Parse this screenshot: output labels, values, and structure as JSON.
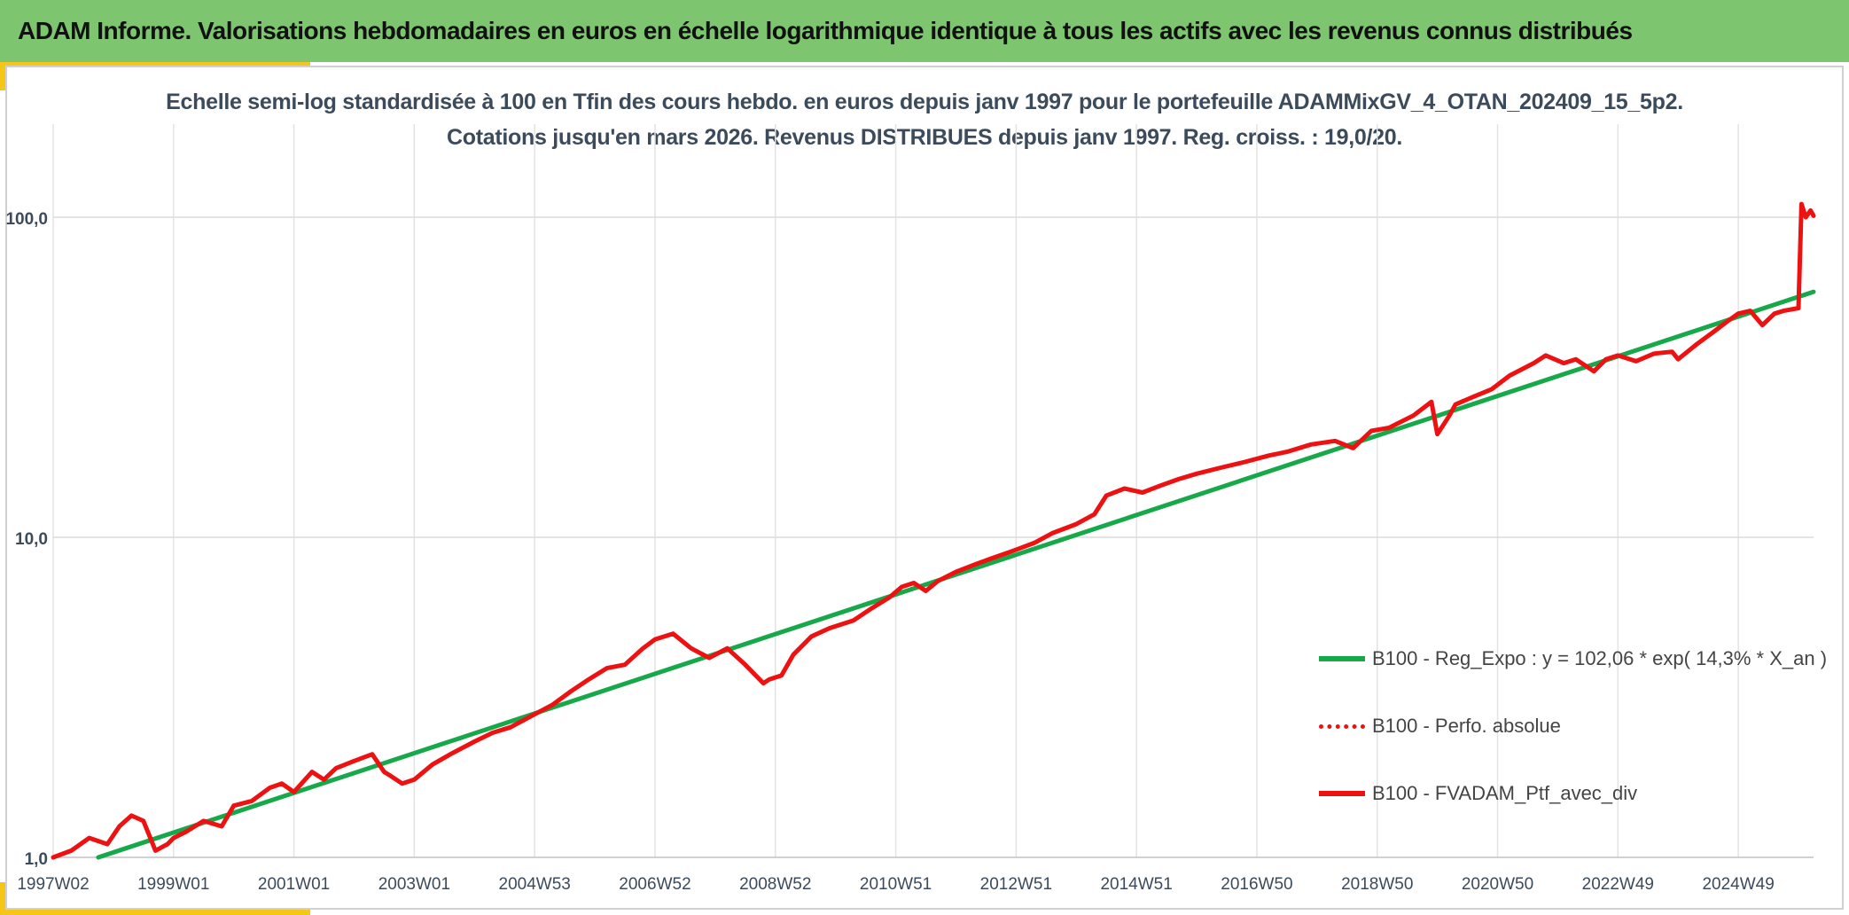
{
  "banner": {
    "title": "ADAM Informe. Valorisations hebdomadaires en euros en échelle logarithmique identique à tous les actifs avec les revenus connus distribués"
  },
  "chart_data": {
    "type": "line",
    "title": "Echelle semi-log standardisée à 100 en Tfin des cours hebdo. en euros depuis janv 1997 pour le portefeuille ADAMMixGV_4_OTAN_202409_15_5p2.",
    "subtitle": "Cotations jusqu'en mars 2026. Revenus DISTRIBUES depuis janv 1997. Reg. croiss. : 19,0/20.",
    "xlabel": "",
    "ylabel": "",
    "y_scale": "log",
    "ylim": [
      1,
      200
    ],
    "xlim": [
      1997.0,
      2026.25
    ],
    "grid": true,
    "legend_position": "right",
    "y_ticks": [
      {
        "value": 1,
        "label": "1,0"
      },
      {
        "value": 10,
        "label": "10,0"
      },
      {
        "value": 100,
        "label": "100,0"
      }
    ],
    "x_ticks": [
      {
        "x": 1997.0,
        "label": "1997W02"
      },
      {
        "x": 1999.0,
        "label": "1999W01"
      },
      {
        "x": 2001.0,
        "label": "2001W01"
      },
      {
        "x": 2003.0,
        "label": "2003W01"
      },
      {
        "x": 2005.0,
        "label": "2004W53"
      },
      {
        "x": 2007.0,
        "label": "2006W52"
      },
      {
        "x": 2009.0,
        "label": "2008W52"
      },
      {
        "x": 2011.0,
        "label": "2010W51"
      },
      {
        "x": 2013.0,
        "label": "2012W51"
      },
      {
        "x": 2015.0,
        "label": "2014W51"
      },
      {
        "x": 2017.0,
        "label": "2016W50"
      },
      {
        "x": 2019.0,
        "label": "2018W50"
      },
      {
        "x": 2021.0,
        "label": "2020W50"
      },
      {
        "x": 2023.0,
        "label": "2022W49"
      },
      {
        "x": 2025.0,
        "label": "2024W49"
      }
    ],
    "series": [
      {
        "name": "B100 - Reg_Expo : y = 102,06 * exp( 14,3% *  X_an )",
        "style": "solid",
        "color": "#17a84a",
        "x": [
          1997.75,
          2026.25
        ],
        "y": [
          1.0,
          58.5
        ]
      },
      {
        "name": "B100 - Perfo. absolue",
        "style": "dotted",
        "color": "#ee1111",
        "x": [],
        "y": []
      },
      {
        "name": "B100 - FVADAM_Ptf_avec_div",
        "style": "solid",
        "color": "#ee1111",
        "x": [
          1997.0,
          1997.3,
          1997.6,
          1997.9,
          1998.1,
          1998.3,
          1998.5,
          1998.7,
          1998.9,
          1999.0,
          1999.2,
          1999.5,
          1999.8,
          2000.0,
          2000.3,
          2000.6,
          2000.8,
          2001.0,
          2001.3,
          2001.5,
          2001.7,
          2002.0,
          2002.3,
          2002.5,
          2002.6,
          2002.8,
          2003.0,
          2003.3,
          2003.6,
          2004.0,
          2004.3,
          2004.6,
          2005.0,
          2005.3,
          2005.6,
          2005.9,
          2006.2,
          2006.5,
          2006.8,
          2007.0,
          2007.3,
          2007.6,
          2007.9,
          2008.2,
          2008.5,
          2008.8,
          2008.9,
          2009.1,
          2009.3,
          2009.6,
          2009.9,
          2010.3,
          2010.6,
          2010.9,
          2011.1,
          2011.3,
          2011.5,
          2011.7,
          2012.0,
          2012.3,
          2012.6,
          2012.9,
          2013.3,
          2013.6,
          2014.0,
          2014.3,
          2014.5,
          2014.8,
          2015.1,
          2015.4,
          2015.7,
          2016.0,
          2016.4,
          2016.8,
          2017.2,
          2017.5,
          2017.9,
          2018.3,
          2018.6,
          2018.9,
          2019.2,
          2019.6,
          2019.9,
          2020.0,
          2020.2,
          2020.3,
          2020.6,
          2020.9,
          2021.2,
          2021.6,
          2021.8,
          2022.1,
          2022.3,
          2022.6,
          2022.8,
          2023.0,
          2023.3,
          2023.6,
          2023.9,
          2024.0,
          2024.3,
          2024.6,
          2024.8,
          2025.0,
          2025.2,
          2025.4,
          2025.6,
          2025.75,
          2026.0,
          2026.05,
          2026.12,
          2026.2,
          2026.25
        ],
        "y": [
          1.0,
          1.05,
          1.15,
          1.1,
          1.25,
          1.35,
          1.3,
          1.05,
          1.1,
          1.15,
          1.2,
          1.3,
          1.25,
          1.45,
          1.5,
          1.65,
          1.7,
          1.6,
          1.85,
          1.75,
          1.9,
          2.0,
          2.1,
          1.85,
          1.8,
          1.7,
          1.75,
          1.95,
          2.1,
          2.3,
          2.45,
          2.55,
          2.8,
          3.0,
          3.3,
          3.6,
          3.9,
          4.0,
          4.5,
          4.8,
          5.0,
          4.5,
          4.2,
          4.5,
          4.0,
          3.5,
          3.6,
          3.7,
          4.3,
          4.9,
          5.2,
          5.5,
          6.0,
          6.5,
          7.0,
          7.2,
          6.8,
          7.3,
          7.8,
          8.2,
          8.6,
          9.0,
          9.6,
          10.3,
          11.0,
          11.8,
          13.5,
          14.2,
          13.8,
          14.5,
          15.2,
          15.8,
          16.5,
          17.2,
          18.0,
          18.5,
          19.5,
          20.0,
          19.0,
          21.5,
          22.0,
          24.0,
          26.5,
          21.0,
          24.0,
          26.0,
          27.5,
          29.0,
          32.0,
          35.0,
          37.0,
          35.0,
          36.0,
          33.0,
          36.0,
          37.0,
          35.5,
          37.5,
          38.0,
          36.0,
          40.0,
          44.0,
          47.0,
          50.0,
          51.0,
          46.0,
          50.0,
          51.0,
          52.0,
          110.0,
          100.0,
          105.0,
          101.0
        ]
      }
    ]
  }
}
